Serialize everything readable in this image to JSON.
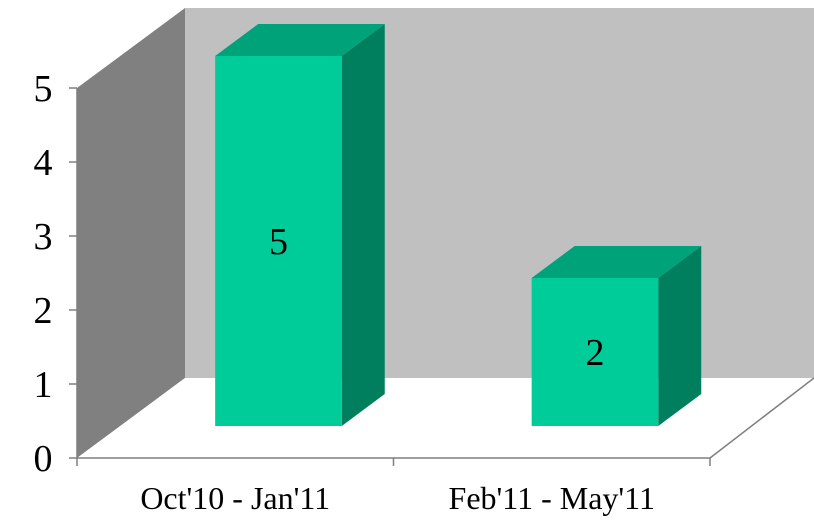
{
  "chart_data": {
    "type": "bar",
    "style": "3d-column",
    "categories": [
      "Oct'10 - Jan'11",
      "Feb'11 - May'11"
    ],
    "values": [
      5,
      2
    ],
    "data_labels": [
      "5",
      "2"
    ],
    "title": "",
    "xlabel": "",
    "ylabel": "",
    "ylim": [
      0,
      5
    ],
    "yticks": [
      "0",
      "1",
      "2",
      "3",
      "4",
      "5"
    ],
    "grid": false,
    "legend": "none"
  },
  "colors": {
    "bar_front": "#00cc99",
    "bar_top": "#00a27a",
    "bar_side": "#007f5f",
    "back_wall": "#c0c0c0",
    "side_wall": "#808080",
    "floor": "#ffffff",
    "axis": "#7f7f7f"
  }
}
